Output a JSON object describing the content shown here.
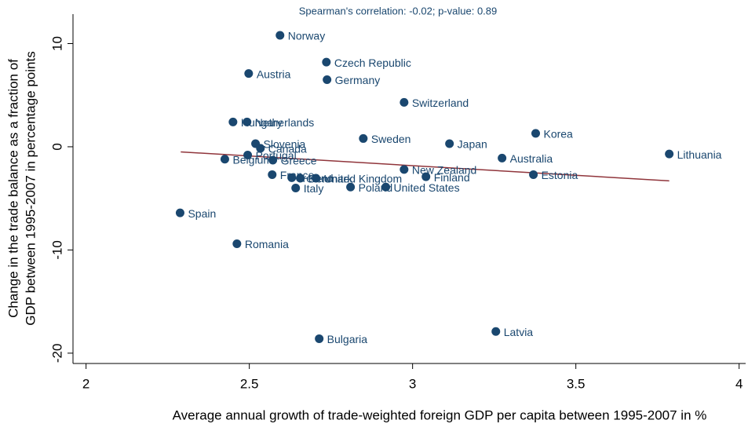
{
  "chart_data": {
    "type": "scatter",
    "title": "Spearman's correlation:  -0.02; p-value: 0.89",
    "x_label": "Average annual growth of trade-weighted foreign GDP per capita between 1995-2007 in %",
    "y_label": [
      "Change in the trade balance as a fraction of",
      "GDP between 1995-2007 in percentage points"
    ],
    "labels": [
      "Norway",
      "Czech Republic",
      "Austria",
      "Germany",
      "Switzerland",
      "Hungary",
      "Netherlands",
      "Korea",
      "Sweden",
      "Japan",
      "Slovenia",
      "Canada",
      "Lithuania",
      "Portugal",
      "Belgium",
      "Greece",
      "Australia",
      "New Zealand",
      "France",
      "Estonia",
      "Ireland",
      "Denmark",
      "United Kingdom",
      "Finland",
      "Poland",
      "United States",
      "Italy",
      "Spain",
      "Romania",
      "Latvia",
      "Bulgaria"
    ],
    "x": [
      2.594,
      2.736,
      2.498,
      2.738,
      2.974,
      2.45,
      2.493,
      3.377,
      2.849,
      3.113,
      2.519,
      2.534,
      3.786,
      2.495,
      2.425,
      2.572,
      3.274,
      2.974,
      2.57,
      3.37,
      2.63,
      2.656,
      2.704,
      3.041,
      2.81,
      2.918,
      2.642,
      2.288,
      2.462,
      3.255,
      2.714
    ],
    "y": [
      10.8,
      8.2,
      7.1,
      6.5,
      4.3,
      2.4,
      2.4,
      1.3,
      0.8,
      0.3,
      0.3,
      -0.15,
      -0.7,
      -0.8,
      -1.2,
      -1.3,
      -1.1,
      -2.2,
      -2.7,
      -2.7,
      -3.0,
      -3.05,
      -3.05,
      -2.9,
      -3.9,
      -3.9,
      -4.0,
      -6.4,
      -9.4,
      -17.9,
      -18.6
    ],
    "color": "#1a476f",
    "fit": {
      "x": [
        2.29,
        3.786
      ],
      "y": [
        -0.5,
        -3.3
      ],
      "color": "#90353b"
    },
    "xlim": [
      1.96,
      4.02
    ],
    "ylim": [
      -21,
      12.7
    ],
    "xticks": [
      2,
      2.5,
      3,
      3.5,
      4
    ],
    "yticks": [
      10,
      0,
      -10,
      -20
    ]
  }
}
